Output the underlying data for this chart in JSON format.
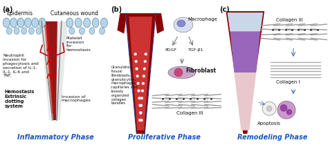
{
  "panel_a_label": "(a)",
  "panel_b_label": "(b)",
  "panel_c_label": "(c)",
  "phase_a": "Inflammatory Phase",
  "phase_b": "Proliferative Phase",
  "phase_c": "Remodeling Phase",
  "bg_color": "#ffffff",
  "phase_label_color": "#1a56c4",
  "phase_label_fontsize": 7.0
}
